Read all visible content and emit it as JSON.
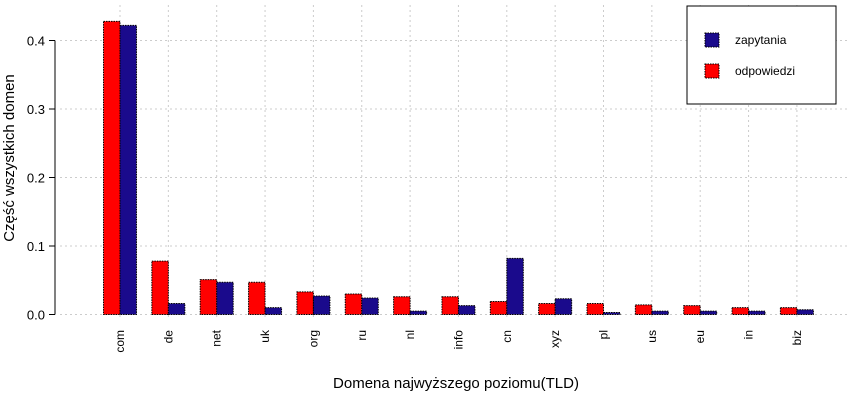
{
  "chart_data": {
    "type": "bar",
    "title": "",
    "xlabel": "Domena najwyższego poziomu(TLD)",
    "ylabel": "Część wszystkich domen",
    "ylim": [
      0,
      0.44
    ],
    "yticks": [
      "0.0",
      "0.1",
      "0.2",
      "0.3",
      "0.4"
    ],
    "grid": true,
    "legend_position": "top-right",
    "categories": [
      "com",
      "de",
      "net",
      "uk",
      "org",
      "ru",
      "nl",
      "info",
      "cn",
      "xyz",
      "pl",
      "us",
      "eu",
      "in",
      "biz"
    ],
    "series": [
      {
        "name": "odpowiedzi",
        "color": "#ff0000",
        "values": [
          0.428,
          0.078,
          0.051,
          0.047,
          0.033,
          0.03,
          0.026,
          0.026,
          0.019,
          0.016,
          0.016,
          0.014,
          0.013,
          0.01,
          0.01
        ]
      },
      {
        "name": "zapytania",
        "color": "#1a0a8c",
        "values": [
          0.422,
          0.016,
          0.047,
          0.01,
          0.027,
          0.024,
          0.005,
          0.013,
          0.082,
          0.023,
          0.003,
          0.005,
          0.005,
          0.005,
          0.007
        ]
      }
    ],
    "legend_order": [
      "zapytania",
      "odpowiedzi"
    ]
  }
}
